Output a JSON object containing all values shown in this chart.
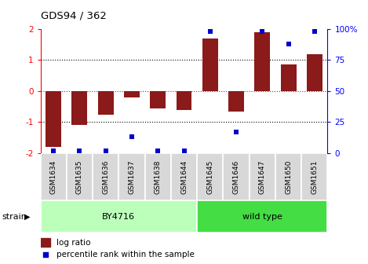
{
  "title": "GDS94 / 362",
  "samples": [
    "GSM1634",
    "GSM1635",
    "GSM1636",
    "GSM1637",
    "GSM1638",
    "GSM1644",
    "GSM1645",
    "GSM1646",
    "GSM1647",
    "GSM1650",
    "GSM1651"
  ],
  "log_ratio": [
    -1.8,
    -1.1,
    -0.75,
    -0.2,
    -0.55,
    -0.6,
    1.7,
    -0.65,
    1.9,
    0.85,
    1.2
  ],
  "percentile_rank": [
    2,
    2,
    2,
    13,
    2,
    2,
    98,
    17,
    98,
    88,
    98
  ],
  "bar_color": "#8B1A1A",
  "dot_color": "#0000CD",
  "ylim": [
    -2,
    2
  ],
  "y2lim": [
    0,
    100
  ],
  "yticks": [
    -2,
    -1,
    0,
    1,
    2
  ],
  "ytick_labels": [
    "-2",
    "-1",
    "0",
    "1",
    "2"
  ],
  "y2ticks": [
    0,
    25,
    50,
    75,
    100
  ],
  "y2tick_labels": [
    "0",
    "25",
    "50",
    "75",
    "100%"
  ],
  "hlines_black": [
    -1,
    1
  ],
  "hline_red": 0,
  "strain_groups": [
    {
      "label": "BY4716",
      "start": 0,
      "end": 6,
      "color": "#BBFFBB"
    },
    {
      "label": "wild type",
      "start": 6,
      "end": 11,
      "color": "#44DD44"
    }
  ],
  "strain_label": "strain",
  "legend_bar_label": "log ratio",
  "legend_dot_label": "percentile rank within the sample",
  "plot_bg_color": "#ffffff"
}
